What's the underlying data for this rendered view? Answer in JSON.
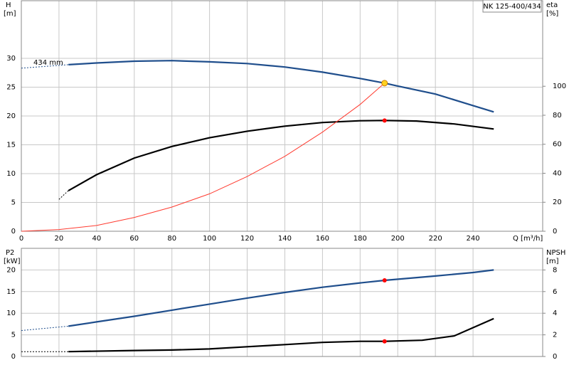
{
  "chart_data": [
    {
      "type": "line",
      "title": "NK 125-400/434",
      "annotation": "434 mm",
      "xlabel": "Q [m³/h]",
      "ylabel": "H",
      "yunit": "[m]",
      "y2label": "eta",
      "y2unit": "[%]",
      "xlim": [
        0,
        277
      ],
      "xticks": [
        0,
        20,
        40,
        60,
        80,
        100,
        120,
        140,
        160,
        180,
        200,
        220,
        240
      ],
      "show_xtick_labels": true,
      "ylim": [
        0,
        40
      ],
      "yticks": [
        0,
        5,
        10,
        15,
        20,
        25,
        30
      ],
      "y2lim": [
        0,
        159
      ],
      "y2ticks": [
        0,
        20,
        40,
        60,
        80,
        100
      ],
      "grid": true,
      "series": [
        {
          "color": "#1f4e8c",
          "style": "dashed",
          "axis": "y",
          "x": [
            0,
            25
          ],
          "values": [
            28.3,
            28.9
          ]
        },
        {
          "color": "#1f4e8c",
          "style": "solid",
          "axis": "y",
          "x": [
            25,
            40,
            60,
            80,
            100,
            120,
            140,
            160,
            180,
            193,
            200,
            220,
            240,
            251
          ],
          "values": [
            28.9,
            29.2,
            29.5,
            29.6,
            29.4,
            29.1,
            28.5,
            27.6,
            26.5,
            25.7,
            25.2,
            23.8,
            21.8,
            20.7
          ]
        },
        {
          "color": "#000000",
          "style": "dashed",
          "axis": "y2",
          "x": [
            20,
            25
          ],
          "values": [
            22,
            28
          ]
        },
        {
          "color": "#000000",
          "style": "solid",
          "axis": "y2",
          "x": [
            25,
            40,
            60,
            80,
            100,
            120,
            140,
            160,
            180,
            193,
            210,
            230,
            251
          ],
          "values": [
            28,
            39,
            50.5,
            58.5,
            64.5,
            69,
            72.5,
            75,
            76.2,
            76.4,
            76,
            74,
            70.5
          ]
        },
        {
          "color": "#ff3b30",
          "style": "thin",
          "axis": "y",
          "x": [
            0,
            20,
            40,
            60,
            80,
            100,
            120,
            140,
            160,
            180,
            193
          ],
          "values": [
            0,
            0.3,
            1.0,
            2.4,
            4.2,
            6.5,
            9.5,
            13,
            17.2,
            22,
            25.7
          ]
        }
      ],
      "points": [
        {
          "x": 193,
          "y": 25.7,
          "axis": "y",
          "color": "#ffd21f"
        },
        {
          "x": 193,
          "y": 76.4,
          "axis": "y2",
          "color": "#ff0000"
        }
      ]
    },
    {
      "type": "line",
      "ylabel": "P2",
      "yunit": "[kW]",
      "y2label": "NPSH",
      "y2unit": "[m]",
      "xlim": [
        0,
        277
      ],
      "xticks": [
        0,
        20,
        40,
        60,
        80,
        100,
        120,
        140,
        160,
        180,
        200,
        220,
        240
      ],
      "show_xtick_labels": false,
      "ylim": [
        0,
        25
      ],
      "yticks": [
        0,
        5,
        10,
        15,
        20
      ],
      "y2lim": [
        0,
        10
      ],
      "y2ticks": [
        0,
        2,
        4,
        6,
        8
      ],
      "grid": true,
      "series": [
        {
          "color": "#1f4e8c",
          "style": "dashed",
          "axis": "y",
          "x": [
            0,
            25
          ],
          "values": [
            6,
            7
          ]
        },
        {
          "color": "#1f4e8c",
          "style": "solid",
          "axis": "y",
          "x": [
            25,
            40,
            60,
            80,
            100,
            120,
            140,
            160,
            180,
            193,
            220,
            240,
            251
          ],
          "values": [
            7,
            8,
            9.3,
            10.7,
            12.1,
            13.5,
            14.8,
            16,
            17,
            17.6,
            18.6,
            19.4,
            20
          ]
        },
        {
          "color": "#000000",
          "style": "dashed",
          "axis": "y2",
          "x": [
            0,
            25
          ],
          "values": [
            0.45,
            0.45
          ]
        },
        {
          "color": "#000000",
          "style": "solid",
          "axis": "y2",
          "x": [
            25,
            60,
            80,
            100,
            120,
            140,
            160,
            180,
            193,
            213,
            230,
            251
          ],
          "values": [
            0.45,
            0.55,
            0.6,
            0.7,
            0.9,
            1.1,
            1.3,
            1.4,
            1.4,
            1.5,
            1.9,
            3.5
          ]
        }
      ],
      "points": [
        {
          "x": 193,
          "y": 17.6,
          "axis": "y",
          "color": "#ff0000"
        },
        {
          "x": 193,
          "y": 1.4,
          "axis": "y2",
          "color": "#ff0000"
        }
      ]
    }
  ]
}
